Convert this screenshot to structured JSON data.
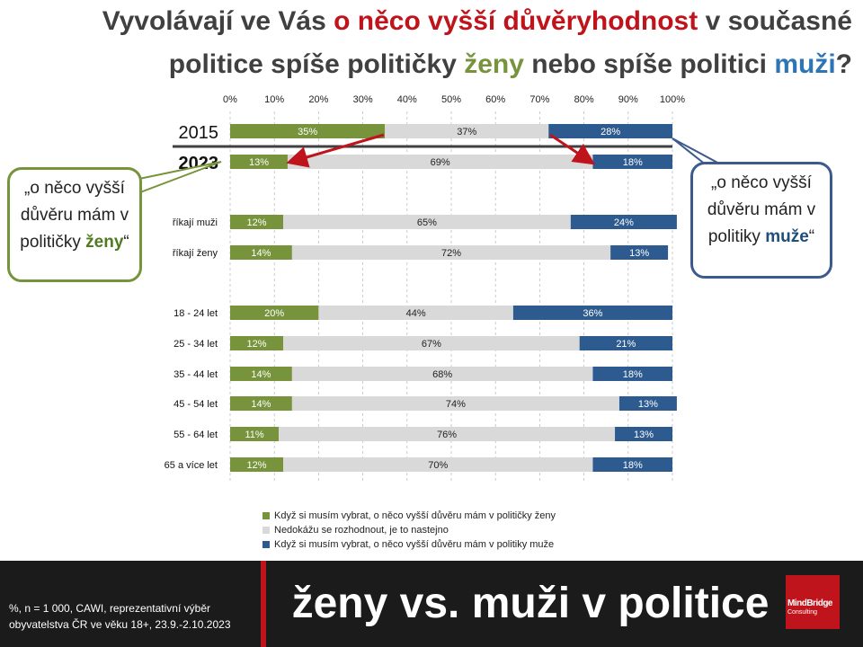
{
  "title": {
    "line1_pre": "Vyvolávají ve Vás ",
    "line1_highlight": "o něco vyšší důvěryhodnost",
    "line1_post": " v současné",
    "line2_pre": "politice spíše političky ",
    "line2_green": "ženy",
    "line2_mid": " nebo spíše politici ",
    "line2_blue": "muži",
    "line2_post": "?"
  },
  "chart_data": {
    "type": "bar",
    "stacked": true,
    "orientation": "horizontal",
    "x_ticks": [
      "0%",
      "10%",
      "20%",
      "30%",
      "40%",
      "50%",
      "60%",
      "70%",
      "80%",
      "90%",
      "100%"
    ],
    "xlim": [
      0,
      100
    ],
    "categories": [
      "2015",
      "2023",
      "říkají muži",
      "říkají ženy",
      "18 - 24 let",
      "25 - 34 let",
      "35 - 44 let",
      "45 - 54 let",
      "55 - 64 let",
      "65 a více let"
    ],
    "series": [
      {
        "name": "Když si musím vybrat, o něco vyšší důvěru mám v političky ženy",
        "color": "#77933c",
        "values": [
          35,
          13,
          12,
          14,
          20,
          12,
          14,
          14,
          11,
          12
        ]
      },
      {
        "name": "Nedokážu se rozhodnout, je to nastejno",
        "color": "#d9d9d9",
        "values": [
          37,
          69,
          65,
          72,
          44,
          67,
          68,
          74,
          76,
          70
        ]
      },
      {
        "name": "Když si musím vybrat, o něco vyšší důvěru mám v politiky muže",
        "color": "#2e5b8f",
        "values": [
          28,
          18,
          24,
          13,
          36,
          21,
          18,
          13,
          13,
          18
        ]
      }
    ],
    "legend_position": "bottom"
  },
  "callouts": {
    "left_pre": "„o něco vyšší důvěru mám v političky ",
    "left_word": "ženy",
    "left_post": "“",
    "right_pre": "„o něco vyšší důvěru mám v politiky ",
    "right_word": "muže",
    "right_post": "“"
  },
  "footer": {
    "note": "%, n = 1 000, CAWI, reprezentativní výběr\nobyvatelstva ČR ve věku 18+,  23.9.-2.10.2023",
    "title": "ženy vs. muži v politice",
    "logo_text": "MindBridge",
    "logo_sub": "Consulting"
  }
}
